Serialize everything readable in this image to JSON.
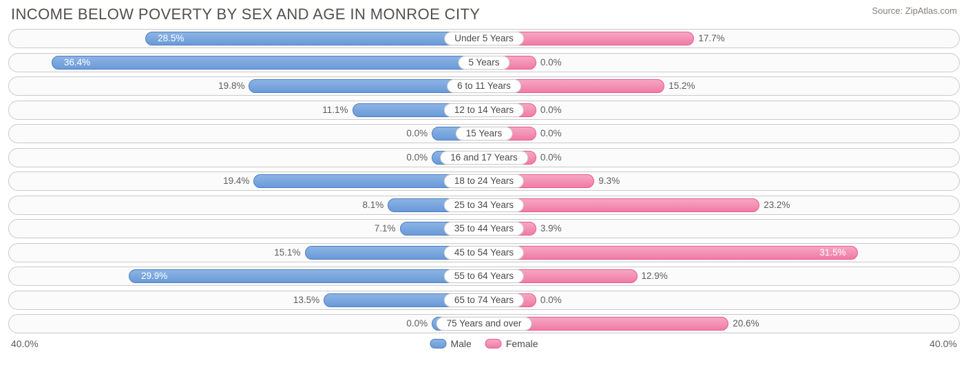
{
  "title": "INCOME BELOW POVERTY BY SEX AND AGE IN MONROE CITY",
  "source": "Source: ZipAtlas.com",
  "chart": {
    "type": "diverging-bar",
    "axis_max": 40.0,
    "axis_label_left": "40.0%",
    "axis_label_right": "40.0%",
    "track_bg": "#fbfbfb",
    "track_border": "#c9c9c9",
    "male": {
      "fill_top": "#8cb4e4",
      "fill_bottom": "#6a9ad8",
      "border": "#4e7ec3",
      "legend_label": "Male"
    },
    "female": {
      "fill_top": "#f6a7c2",
      "fill_bottom": "#f17ba6",
      "border": "#e75a90",
      "legend_label": "Female"
    },
    "min_bar_pct": 5.5,
    "label_inside_threshold_pct": 26.0,
    "rows": [
      {
        "category": "Under 5 Years",
        "male": 28.5,
        "female": 17.7,
        "male_label": "28.5%",
        "female_label": "17.7%"
      },
      {
        "category": "5 Years",
        "male": 36.4,
        "female": 0.0,
        "male_label": "36.4%",
        "female_label": "0.0%"
      },
      {
        "category": "6 to 11 Years",
        "male": 19.8,
        "female": 15.2,
        "male_label": "19.8%",
        "female_label": "15.2%"
      },
      {
        "category": "12 to 14 Years",
        "male": 11.1,
        "female": 0.0,
        "male_label": "11.1%",
        "female_label": "0.0%"
      },
      {
        "category": "15 Years",
        "male": 0.0,
        "female": 0.0,
        "male_label": "0.0%",
        "female_label": "0.0%"
      },
      {
        "category": "16 and 17 Years",
        "male": 0.0,
        "female": 0.0,
        "male_label": "0.0%",
        "female_label": "0.0%"
      },
      {
        "category": "18 to 24 Years",
        "male": 19.4,
        "female": 9.3,
        "male_label": "19.4%",
        "female_label": "9.3%"
      },
      {
        "category": "25 to 34 Years",
        "male": 8.1,
        "female": 23.2,
        "male_label": "8.1%",
        "female_label": "23.2%"
      },
      {
        "category": "35 to 44 Years",
        "male": 7.1,
        "female": 3.9,
        "male_label": "7.1%",
        "female_label": "3.9%"
      },
      {
        "category": "45 to 54 Years",
        "male": 15.1,
        "female": 31.5,
        "male_label": "15.1%",
        "female_label": "31.5%"
      },
      {
        "category": "55 to 64 Years",
        "male": 29.9,
        "female": 12.9,
        "male_label": "29.9%",
        "female_label": "12.9%"
      },
      {
        "category": "65 to 74 Years",
        "male": 13.5,
        "female": 0.0,
        "male_label": "13.5%",
        "female_label": "0.0%"
      },
      {
        "category": "75 Years and over",
        "male": 0.0,
        "female": 20.6,
        "male_label": "0.0%",
        "female_label": "20.6%"
      }
    ]
  }
}
